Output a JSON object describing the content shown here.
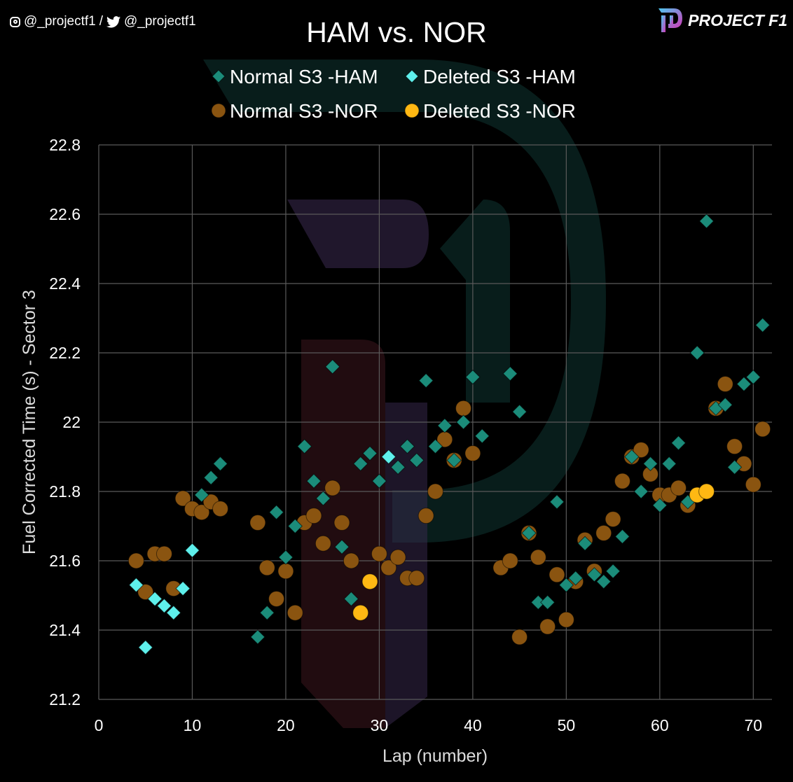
{
  "social": {
    "instagram_handle": "@_projectf1",
    "separator": "/",
    "twitter_handle": "@_projectf1"
  },
  "brand": {
    "name": "PROJECT F1",
    "colors": [
      "#4cc9f0",
      "#d13ab8"
    ]
  },
  "chart_data": {
    "type": "scatter",
    "title": "HAM vs. NOR",
    "xlabel": "Lap (number)",
    "ylabel": "Fuel Corrected Time (s) - Sector 3",
    "xlim": [
      0,
      72
    ],
    "ylim": [
      21.2,
      22.8
    ],
    "xticks": [
      0,
      10,
      20,
      30,
      40,
      50,
      60,
      70
    ],
    "yticks": [
      21.2,
      21.4,
      21.6,
      21.8,
      22,
      22.2,
      22.4,
      22.6,
      22.8
    ],
    "ytick_labels": [
      "21.2",
      "21.4",
      "21.6",
      "21.8",
      "22",
      "22.2",
      "22.4",
      "22.6",
      "22.8"
    ],
    "grid": true,
    "legend_position": "top",
    "series": [
      {
        "name": "Normal S3 -HAM",
        "marker": "diamond",
        "color": "#1b8c7a",
        "points": [
          [
            11,
            21.79
          ],
          [
            12,
            21.84
          ],
          [
            13,
            21.88
          ],
          [
            17,
            21.38
          ],
          [
            18,
            21.45
          ],
          [
            19,
            21.74
          ],
          [
            20,
            21.61
          ],
          [
            21,
            21.7
          ],
          [
            22,
            21.93
          ],
          [
            23,
            21.83
          ],
          [
            24,
            21.78
          ],
          [
            25,
            22.16
          ],
          [
            26,
            21.64
          ],
          [
            27,
            21.49
          ],
          [
            28,
            21.88
          ],
          [
            29,
            21.91
          ],
          [
            30,
            21.83
          ],
          [
            32,
            21.87
          ],
          [
            33,
            21.93
          ],
          [
            34,
            21.89
          ],
          [
            35,
            22.12
          ],
          [
            36,
            21.93
          ],
          [
            37,
            21.99
          ],
          [
            38,
            21.89
          ],
          [
            39,
            22.0
          ],
          [
            40,
            22.13
          ],
          [
            41,
            21.96
          ],
          [
            44,
            22.14
          ],
          [
            45,
            22.03
          ],
          [
            46,
            21.68
          ],
          [
            47,
            21.48
          ],
          [
            48,
            21.48
          ],
          [
            49,
            21.77
          ],
          [
            50,
            21.53
          ],
          [
            51,
            21.55
          ],
          [
            52,
            21.65
          ],
          [
            53,
            21.56
          ],
          [
            54,
            21.54
          ],
          [
            55,
            21.57
          ],
          [
            56,
            21.67
          ],
          [
            57,
            21.9
          ],
          [
            58,
            21.8
          ],
          [
            59,
            21.88
          ],
          [
            60,
            21.76
          ],
          [
            61,
            21.88
          ],
          [
            62,
            21.94
          ],
          [
            63,
            21.77
          ],
          [
            64,
            22.2
          ],
          [
            65,
            22.58
          ],
          [
            66,
            22.04
          ],
          [
            67,
            22.05
          ],
          [
            68,
            21.87
          ],
          [
            69,
            22.11
          ],
          [
            70,
            22.13
          ],
          [
            71,
            22.28
          ]
        ]
      },
      {
        "name": "Deleted S3 -HAM",
        "marker": "diamond",
        "color": "#5ef0ec",
        "points": [
          [
            4,
            21.53
          ],
          [
            5,
            21.35
          ],
          [
            6,
            21.49
          ],
          [
            7,
            21.47
          ],
          [
            8,
            21.45
          ],
          [
            9,
            21.52
          ],
          [
            10,
            21.63
          ],
          [
            31,
            21.9
          ]
        ]
      },
      {
        "name": "Normal S3 -NOR",
        "marker": "circle",
        "color": "#8a5410",
        "points": [
          [
            4,
            21.6
          ],
          [
            5,
            21.51
          ],
          [
            6,
            21.62
          ],
          [
            7,
            21.62
          ],
          [
            8,
            21.52
          ],
          [
            9,
            21.78
          ],
          [
            10,
            21.75
          ],
          [
            11,
            21.74
          ],
          [
            12,
            21.77
          ],
          [
            13,
            21.75
          ],
          [
            17,
            21.71
          ],
          [
            18,
            21.58
          ],
          [
            19,
            21.49
          ],
          [
            20,
            21.57
          ],
          [
            21,
            21.45
          ],
          [
            22,
            21.71
          ],
          [
            23,
            21.73
          ],
          [
            24,
            21.65
          ],
          [
            25,
            21.81
          ],
          [
            26,
            21.71
          ],
          [
            27,
            21.6
          ],
          [
            30,
            21.62
          ],
          [
            31,
            21.58
          ],
          [
            32,
            21.61
          ],
          [
            33,
            21.55
          ],
          [
            34,
            21.55
          ],
          [
            35,
            21.73
          ],
          [
            36,
            21.8
          ],
          [
            37,
            21.95
          ],
          [
            38,
            21.89
          ],
          [
            39,
            22.04
          ],
          [
            40,
            21.91
          ],
          [
            43,
            21.58
          ],
          [
            44,
            21.6
          ],
          [
            45,
            21.38
          ],
          [
            46,
            21.68
          ],
          [
            47,
            21.61
          ],
          [
            48,
            21.41
          ],
          [
            49,
            21.56
          ],
          [
            50,
            21.43
          ],
          [
            51,
            21.54
          ],
          [
            52,
            21.66
          ],
          [
            53,
            21.57
          ],
          [
            54,
            21.68
          ],
          [
            55,
            21.72
          ],
          [
            56,
            21.83
          ],
          [
            57,
            21.9
          ],
          [
            58,
            21.92
          ],
          [
            59,
            21.85
          ],
          [
            60,
            21.79
          ],
          [
            61,
            21.79
          ],
          [
            62,
            21.81
          ],
          [
            63,
            21.76
          ],
          [
            66,
            22.04
          ],
          [
            67,
            22.11
          ],
          [
            68,
            21.93
          ],
          [
            69,
            21.88
          ],
          [
            70,
            21.82
          ],
          [
            71,
            21.98
          ]
        ]
      },
      {
        "name": "Deleted S3 -NOR",
        "marker": "circle",
        "color": "#ffb813",
        "points": [
          [
            28,
            21.45
          ],
          [
            29,
            21.54
          ],
          [
            64,
            21.79
          ],
          [
            65,
            21.8
          ]
        ]
      }
    ]
  }
}
